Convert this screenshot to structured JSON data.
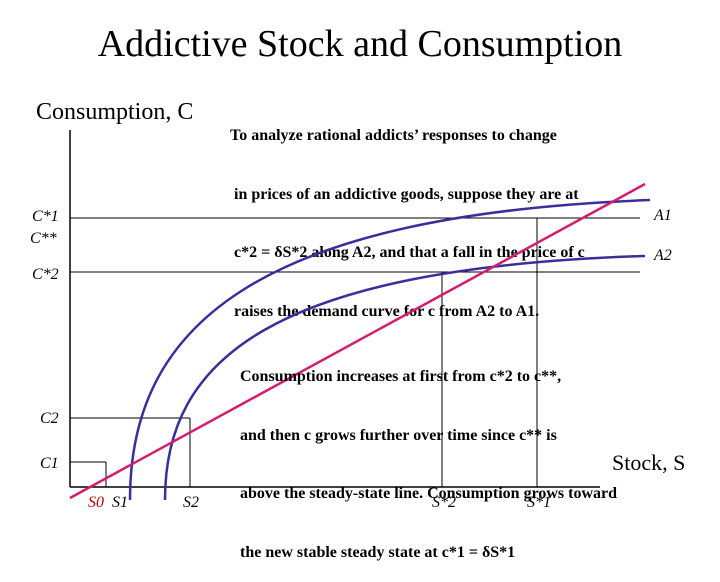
{
  "title": "Addictive Stock and Consumption",
  "axes": {
    "y_label": "Consumption, C",
    "x_label": "Stock, S"
  },
  "note_top": [
    "To analyze rational addicts’ responses to change",
    " in prices of an addictive goods, suppose they are at",
    " c*2 = δS*2 along A2, and that a fall in the price of c",
    " raises the demand curve for c from A2 to A1."
  ],
  "note_bottom": [
    "Consumption increases at first from c*2 to c**,",
    "and then c grows further over time since c** is",
    "above the steady-state line. Consumption grows toward",
    "the new stable steady state at c*1 = δS*1"
  ],
  "y_ticks": {
    "c_star_1": "C*1",
    "c_star_star": "C**",
    "c_star_2": "C*2",
    "c2": "C2",
    "c1": "C1"
  },
  "x_ticks": {
    "s0": "S0",
    "s1": "S1",
    "s2": "S2",
    "s_star_2": "S*2",
    "s_star_1": "S*1"
  },
  "curve_labels": {
    "a1": "A1",
    "a2": "A2"
  },
  "colors": {
    "steady_state_line": "#d21e6e",
    "demand_curves": "#3a2f9a",
    "axes": "#000000",
    "s0_tick": "#c00000"
  }
}
